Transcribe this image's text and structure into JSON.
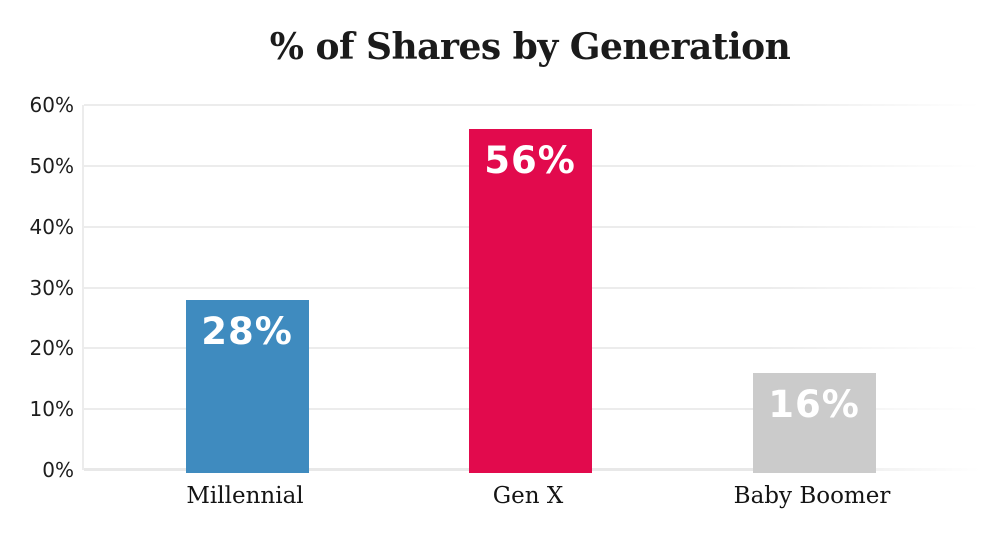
{
  "chart_data": {
    "type": "bar",
    "title": "% of Shares by Generation",
    "xlabel": "",
    "ylabel": "",
    "categories": [
      "Millennial",
      "Gen X",
      "Baby Boomer"
    ],
    "values": [
      28,
      56,
      16
    ],
    "value_labels": [
      "28%",
      "56%",
      "16%"
    ],
    "bar_colors": [
      "#3f8bbf",
      "#e20a4d",
      "#cbcbcb"
    ],
    "value_label_color": "#ffffff",
    "y_ticks": [
      {
        "value": 0,
        "label": "0%"
      },
      {
        "value": 10,
        "label": "10%"
      },
      {
        "value": 20,
        "label": "20%"
      },
      {
        "value": 30,
        "label": "30%"
      },
      {
        "value": 40,
        "label": "40%"
      },
      {
        "value": 50,
        "label": "50%"
      },
      {
        "value": 60,
        "label": "60%"
      }
    ],
    "ylim": [
      0,
      60
    ],
    "grid": true,
    "legend": false,
    "background_color": "#ffffff",
    "gridline_color": "#ececec"
  }
}
